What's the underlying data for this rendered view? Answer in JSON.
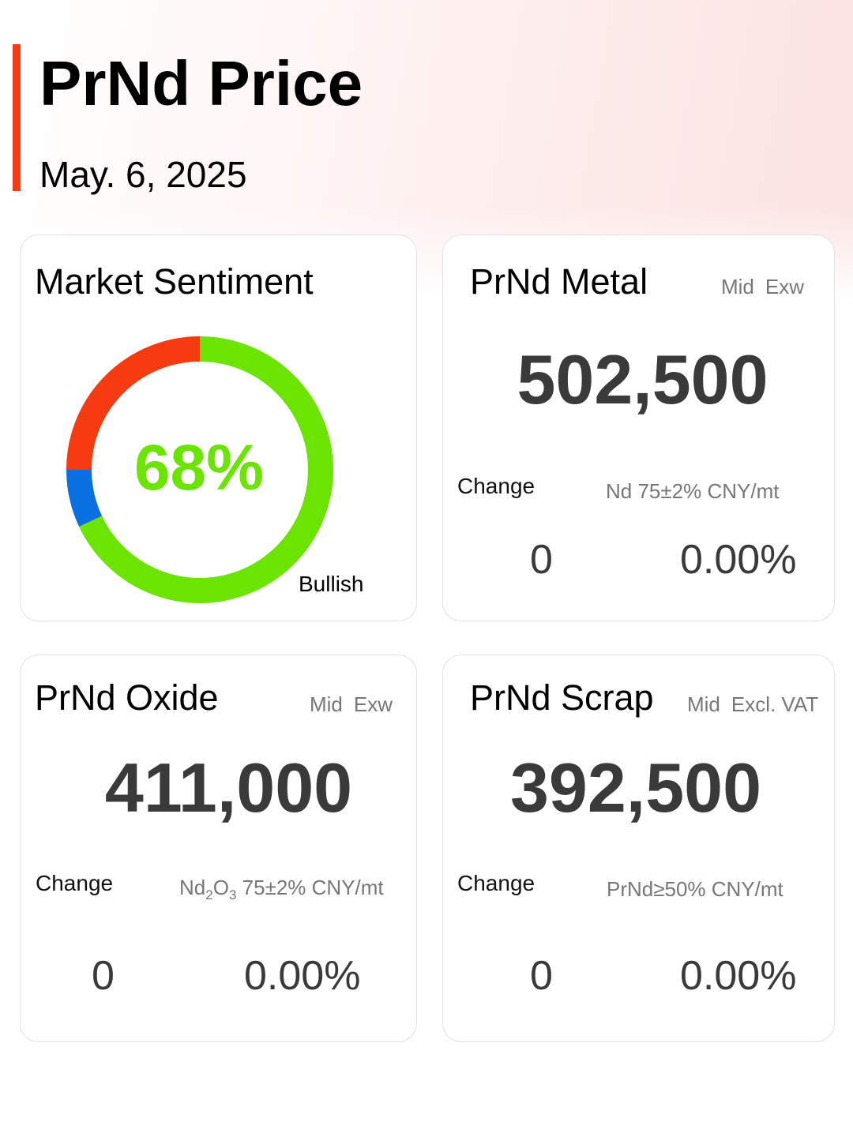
{
  "header": {
    "title": "PrNd Price",
    "date": "May. 6, 2025",
    "accent_color": "#f53b0f"
  },
  "sentiment": {
    "title": "Market Sentiment",
    "percent_label": "68%",
    "legend_label": "Bullish",
    "segments": [
      {
        "label": "Bullish",
        "value": 68,
        "color": "#6ae400"
      },
      {
        "label": "",
        "value": 7,
        "color": "#0a6fe0"
      },
      {
        "label": "",
        "value": 25,
        "color": "#f53b0f"
      }
    ]
  },
  "metal": {
    "title": "PrNd Metal",
    "meta_basis": "Mid",
    "meta_term": "Exw",
    "price": "502,500",
    "change_label": "Change",
    "spec": "Nd 75±2% CNY/mt",
    "change_abs": "0",
    "change_pct": "0.00%"
  },
  "oxide": {
    "title": "PrNd Oxide",
    "meta_basis": "Mid",
    "meta_term": "Exw",
    "price": "411,000",
    "change_label": "Change",
    "spec_main": "Nd",
    "spec_sub1": "2",
    "spec_mid": "O",
    "spec_sub2": "3",
    "spec_rest": " 75±2% CNY/mt",
    "change_abs": "0",
    "change_pct": "0.00%"
  },
  "scrap": {
    "title": "PrNd Scrap",
    "meta_basis": "Mid",
    "meta_term": "Excl. VAT",
    "price": "392,500",
    "change_label": "Change",
    "spec": "PrNd≥50% CNY/mt",
    "change_abs": "0",
    "change_pct": "0.00%"
  }
}
